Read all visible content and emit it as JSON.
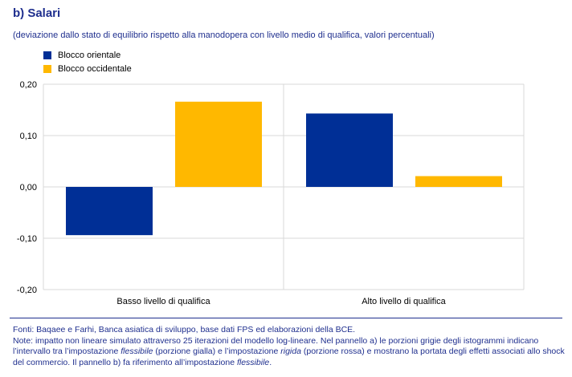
{
  "title": "b) Salari",
  "subtitle": "(deviazione dallo stato di equilibrio rispetto alla manodopera con livello medio di qualifica, valori percentuali)",
  "colors": {
    "series1": "#002f96",
    "series2": "#ffb800",
    "grid": "#d9d9d9",
    "text": "#1f2f8e"
  },
  "chart_data": {
    "type": "bar",
    "categories": [
      "Basso livello di qualifica",
      "Alto livello di qualifica"
    ],
    "series": [
      {
        "name": "Blocco orientale",
        "values": [
          -0.094,
          0.143
        ]
      },
      {
        "name": "Blocco occidentale",
        "values": [
          0.166,
          0.021
        ]
      }
    ],
    "ylim": [
      -0.2,
      0.2
    ],
    "yticks": [
      0.2,
      0.1,
      0.0,
      -0.1,
      -0.2
    ],
    "ytick_labels": [
      "0,20",
      "0,10",
      "0,00",
      "-0,10",
      "-0,20"
    ],
    "grid": true,
    "legend": "top-left"
  },
  "footer": {
    "line1": "Fonti: Baqaee e Farhi, Banca asiatica di sviluppo, base dati FPS ed elaborazioni della BCE.",
    "line2_a": "Note: impatto non lineare simulato attraverso 25 iterazioni del modello log-lineare. Nel pannello a) le porzioni grigie degli istogrammi indicano l’intervallo tra l’impostazione ",
    "line2_flex": "flessibile",
    "line2_b": " (porzione gialla) e l’impostazione ",
    "line2_rigid": "rigida",
    "line2_c": " (porzione rossa) e mostrano la portata degli effetti associati allo shock del commercio. Il pannello b) fa riferimento all’impostazione ",
    "line2_flex2": "flessibile",
    "line2_d": "."
  }
}
